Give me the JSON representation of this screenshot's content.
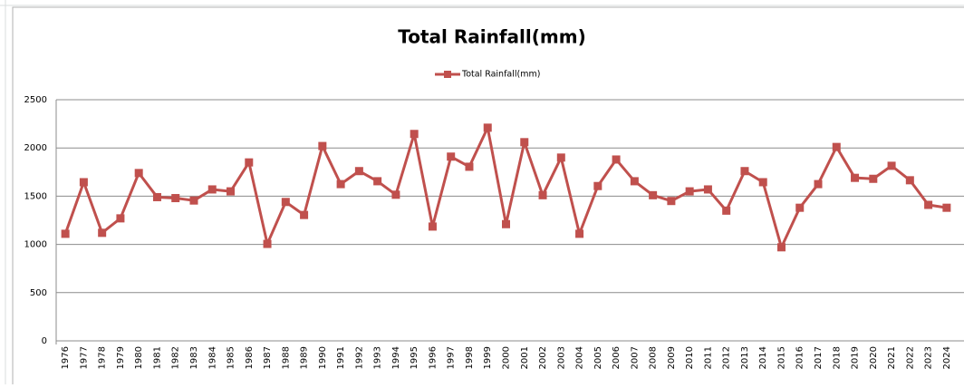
{
  "chart_data": {
    "type": "line",
    "title": "Total Rainfall(mm)",
    "categories": [
      "1976",
      "1977",
      "1978",
      "1979",
      "1980",
      "1981",
      "1982",
      "1983",
      "1984",
      "1985",
      "1986",
      "1987",
      "1988",
      "1989",
      "1990",
      "1991",
      "1992",
      "1993",
      "1994",
      "1995",
      "1996",
      "1997",
      "1998",
      "1999",
      "2000",
      "2001",
      "2002",
      "2003",
      "2004",
      "2005",
      "2006",
      "2007",
      "2008",
      "2009",
      "2010",
      "2011",
      "2012",
      "2013",
      "2014",
      "2015",
      "2016",
      "2017",
      "2018",
      "2019",
      "2020",
      "2021",
      "2022",
      "2023",
      "2024"
    ],
    "series": [
      {
        "name": "Total Rainfall(mm)",
        "color": "#c0504d",
        "values": [
          1110,
          1645,
          1120,
          1270,
          1740,
          1490,
          1480,
          1455,
          1570,
          1550,
          1850,
          1005,
          1440,
          1305,
          2020,
          1625,
          1760,
          1655,
          1515,
          2145,
          1185,
          1910,
          1805,
          2210,
          1210,
          2060,
          1510,
          1900,
          1110,
          1605,
          1880,
          1655,
          1510,
          1450,
          1550,
          1570,
          1350,
          1760,
          1645,
          970,
          1380,
          1625,
          2010,
          1690,
          1680,
          1815,
          1665,
          1410,
          1380
        ]
      }
    ],
    "ylim": [
      0,
      2500
    ],
    "yticks": [
      0,
      500,
      1000,
      1500,
      2000,
      2500
    ],
    "grid": true,
    "legend": "top",
    "marker": "square"
  }
}
